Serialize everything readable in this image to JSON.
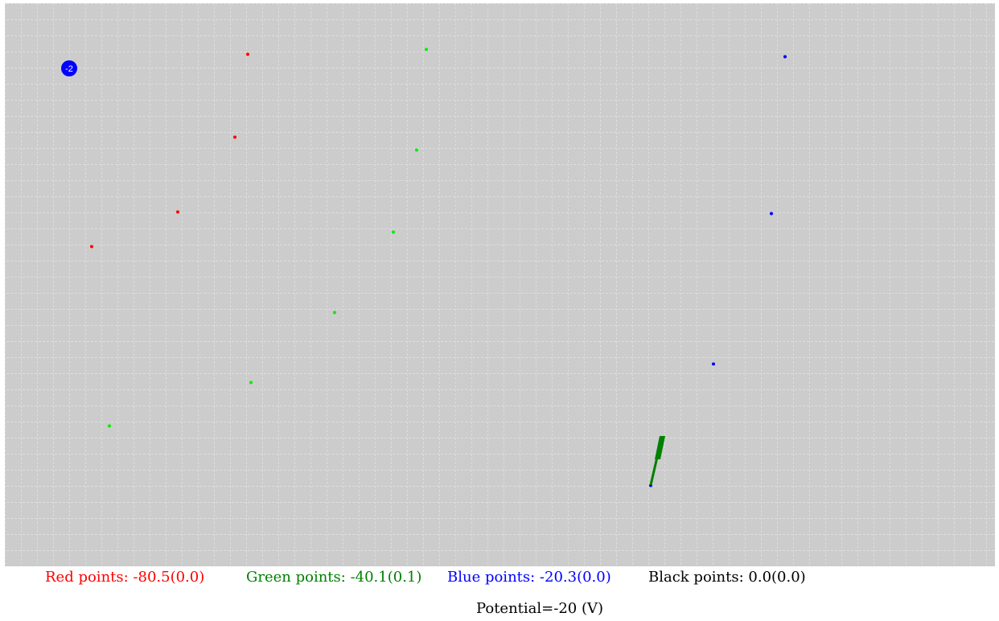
{
  "canvas": {
    "background": "#cccccc",
    "grid_color": "#ffffff"
  },
  "charge": {
    "label": "-2",
    "color": "#0000ff"
  },
  "colors": {
    "red": "#ff0000",
    "green": "#00ee00",
    "blue": "#0000ff",
    "probe": "#008000"
  },
  "stats": {
    "red": "Red points: -80.5(0.0)",
    "green": "Green points: -40.1(0.1)",
    "blue": "Blue points: -20.3(0.0)",
    "black": "Black points: 0.0(0.0)"
  },
  "potential": "Potential=-20 (V)"
}
